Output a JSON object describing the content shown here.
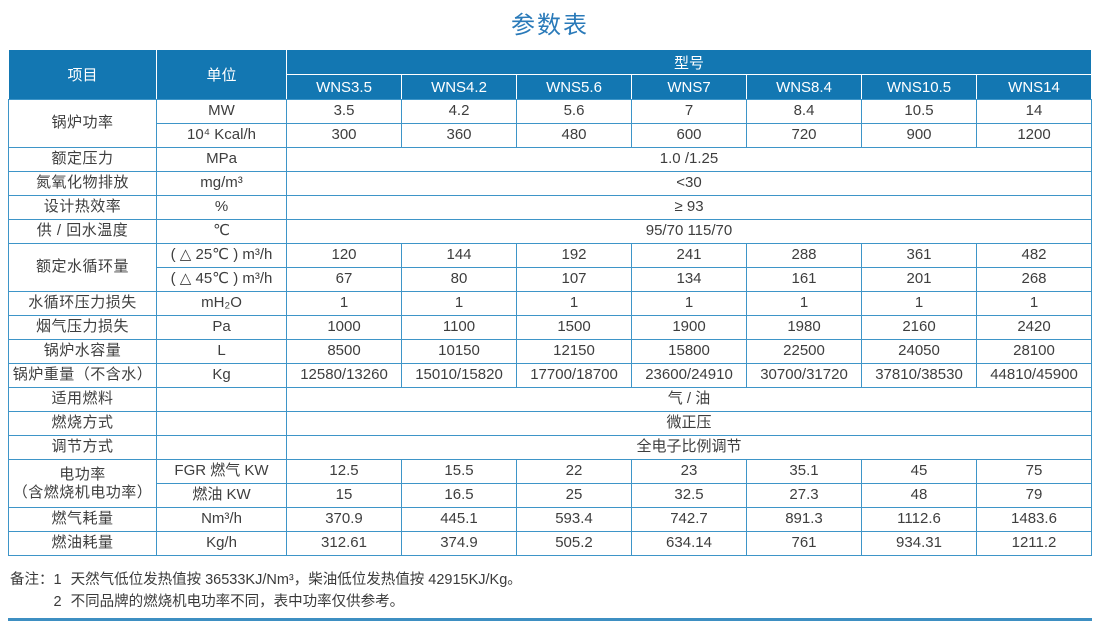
{
  "title": "参数表",
  "colors": {
    "header_bg": "#1377b2",
    "grid_border": "#3e95c8",
    "title_text": "#2a7ab9",
    "body_text": "#3e3e3e",
    "bottom_rule": "#3e8fc2"
  },
  "table": {
    "header": {
      "item": "项目",
      "unit": "单位",
      "model_group": "型号",
      "models": [
        "WNS3.5",
        "WNS4.2",
        "WNS5.6",
        "WNS7",
        "WNS8.4",
        "WNS10.5",
        "WNS14"
      ]
    },
    "rows": [
      {
        "item": "锅炉功率",
        "sub": [
          {
            "unit": "MW",
            "values": [
              "3.5",
              "4.2",
              "5.6",
              "7",
              "8.4",
              "10.5",
              "14"
            ]
          },
          {
            "unit": "10⁴ Kcal/h",
            "values": [
              "300",
              "360",
              "480",
              "600",
              "720",
              "900",
              "1200"
            ]
          }
        ]
      },
      {
        "item": "额定压力",
        "sub": [
          {
            "unit": "MPa",
            "span": "1.0 /1.25"
          }
        ]
      },
      {
        "item": "氮氧化物排放",
        "sub": [
          {
            "unit": "mg/m³",
            "span": "<30"
          }
        ]
      },
      {
        "item": "设计热效率",
        "sub": [
          {
            "unit": "%",
            "span": "≥ 93"
          }
        ]
      },
      {
        "item": "供 / 回水温度",
        "sub": [
          {
            "unit": "℃",
            "span": "95/70   115/70"
          }
        ]
      },
      {
        "item": "额定水循环量",
        "sub": [
          {
            "unit": "( △ 25℃ ) m³/h",
            "values": [
              "120",
              "144",
              "192",
              "241",
              "288",
              "361",
              "482"
            ]
          },
          {
            "unit": "( △ 45℃ ) m³/h",
            "values": [
              "67",
              "80",
              "107",
              "134",
              "161",
              "201",
              "268"
            ]
          }
        ]
      },
      {
        "item": "水循环压力损失",
        "sub": [
          {
            "unit": "mH₂O",
            "values": [
              "1",
              "1",
              "1",
              "1",
              "1",
              "1",
              "1"
            ]
          }
        ]
      },
      {
        "item": "烟气压力损失",
        "sub": [
          {
            "unit": "Pa",
            "values": [
              "1000",
              "1100",
              "1500",
              "1900",
              "1980",
              "2160",
              "2420"
            ]
          }
        ]
      },
      {
        "item": "锅炉水容量",
        "sub": [
          {
            "unit": "L",
            "values": [
              "8500",
              "10150",
              "12150",
              "15800",
              "22500",
              "24050",
              "28100"
            ]
          }
        ]
      },
      {
        "item": "锅炉重量（不含水）",
        "sub": [
          {
            "unit": "Kg",
            "values": [
              "12580/13260",
              "15010/15820",
              "17700/18700",
              "23600/24910",
              "30700/31720",
              "37810/38530",
              "44810/45900"
            ]
          }
        ]
      },
      {
        "item": "适用燃料",
        "sub": [
          {
            "unit": "",
            "span": "气 / 油"
          }
        ]
      },
      {
        "item": "燃烧方式",
        "sub": [
          {
            "unit": "",
            "span": "微正压"
          }
        ]
      },
      {
        "item": "调节方式",
        "sub": [
          {
            "unit": "",
            "span": "全电子比例调节"
          }
        ]
      },
      {
        "item": "电功率",
        "item2": "（含燃烧机电功率）",
        "sub": [
          {
            "unit": "FGR 燃气 KW",
            "values": [
              "12.5",
              "15.5",
              "22",
              "23",
              "35.1",
              "45",
              "75"
            ]
          },
          {
            "unit": "燃油 KW",
            "values": [
              "15",
              "16.5",
              "25",
              "32.5",
              "27.3",
              "48",
              "79"
            ]
          }
        ]
      },
      {
        "item": "燃气耗量",
        "sub": [
          {
            "unit": "Nm³/h",
            "values": [
              "370.9",
              "445.1",
              "593.4",
              "742.7",
              "891.3",
              "1112.6",
              "1483.6"
            ]
          }
        ]
      },
      {
        "item": "燃油耗量",
        "sub": [
          {
            "unit": "Kg/h",
            "values": [
              "312.61",
              "374.9",
              "505.2",
              "634.14",
              "761",
              "934.31",
              "1211.2"
            ]
          }
        ]
      }
    ]
  },
  "notes": {
    "prefix": "备注：",
    "items": [
      {
        "num": "1",
        "text": "天然气低位发热值按 36533KJ/Nm³，柴油低位发热值按 42915KJ/Kg。"
      },
      {
        "num": "2",
        "text": "不同品牌的燃烧机电功率不同，表中功率仅供参考。"
      }
    ]
  }
}
